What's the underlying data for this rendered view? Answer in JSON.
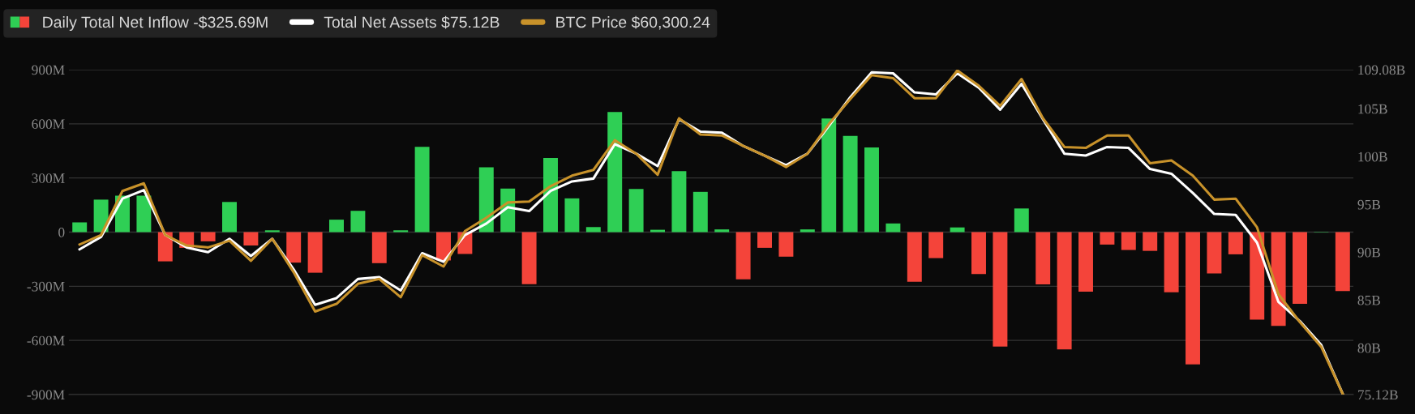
{
  "chart_data": {
    "type": "bar",
    "categories": [
      null,
      null,
      null,
      null,
      null,
      null,
      null,
      null,
      null,
      null,
      null,
      null,
      null,
      null,
      null,
      null,
      null,
      null,
      null,
      null,
      null,
      null,
      null,
      null,
      null,
      null,
      null,
      null,
      null,
      null,
      null,
      null,
      null,
      null,
      null,
      null,
      null,
      null,
      null,
      null,
      null,
      null,
      null,
      null,
      null,
      null,
      null,
      null,
      null,
      null,
      null,
      null,
      null,
      null,
      null,
      null,
      null,
      null,
      null,
      null
    ],
    "series": [
      {
        "name": "Daily Total Net Inflow -$325.69M",
        "values": [
          54,
          180,
          202,
          202,
          -162,
          -87,
          -51,
          167,
          -74,
          10,
          -169,
          -225,
          69,
          118,
          -172,
          10,
          472,
          -157,
          -121,
          359,
          241,
          -288,
          411,
          187,
          28,
          665,
          239,
          13,
          338,
          223,
          15,
          -262,
          -87,
          -136,
          15,
          629,
          533,
          469,
          48,
          -275,
          -144,
          26,
          -232,
          -634,
          131,
          -290,
          -650,
          -330,
          -69,
          -99,
          -104,
          -333,
          -733,
          -229,
          -123,
          -485,
          -520,
          -397,
          2,
          -326
        ],
        "colors": [
          "#2fcf55",
          "#2fcf55",
          "#2fcf55",
          "#2fcf55",
          "#f4443a",
          "#f4443a",
          "#f4443a",
          "#2fcf55",
          "#f4443a",
          "#2fcf55",
          "#f4443a",
          "#f4443a",
          "#2fcf55",
          "#2fcf55",
          "#f4443a",
          "#2fcf55",
          "#2fcf55",
          "#f4443a",
          "#f4443a",
          "#2fcf55",
          "#2fcf55",
          "#f4443a",
          "#2fcf55",
          "#2fcf55",
          "#2fcf55",
          "#2fcf55",
          "#2fcf55",
          "#2fcf55",
          "#2fcf55",
          "#2fcf55",
          "#2fcf55",
          "#f4443a",
          "#f4443a",
          "#f4443a",
          "#2fcf55",
          "#2fcf55",
          "#2fcf55",
          "#2fcf55",
          "#2fcf55",
          "#f4443a",
          "#f4443a",
          "#2fcf55",
          "#f4443a",
          "#f4443a",
          "#2fcf55",
          "#f4443a",
          "#f4443a",
          "#f4443a",
          "#f4443a",
          "#f4443a",
          "#f4443a",
          "#f4443a",
          "#f4443a",
          "#f4443a",
          "#f4443a",
          "#f4443a",
          "#f4443a",
          "#f4443a",
          "#2fcf55",
          "#f4443a"
        ]
      },
      {
        "name": "Total Net Assets $75.12B",
        "type": "line",
        "axis": "y2",
        "color": "#ffffff",
        "values": [
          90.3,
          91.6,
          95.6,
          96.5,
          91.8,
          90.5,
          90.0,
          91.4,
          89.6,
          91.4,
          88.2,
          84.5,
          85.2,
          87.2,
          87.4,
          86.0,
          89.9,
          89.0,
          91.8,
          93.0,
          94.7,
          94.3,
          96.4,
          97.4,
          97.7,
          101.3,
          100.3,
          99.0,
          103.9,
          102.6,
          102.5,
          101.1,
          100.1,
          99.1,
          100.3,
          103.2,
          106.2,
          108.8,
          108.7,
          106.7,
          106.5,
          108.7,
          107.2,
          104.9,
          107.6,
          103.9,
          100.3,
          100.1,
          101.0,
          100.9,
          98.7,
          98.2,
          96.2,
          94.0,
          93.9,
          91.0,
          84.8,
          82.8,
          80.3,
          75.2
        ]
      },
      {
        "name": "BTC Price $60,300.24",
        "type": "line",
        "axis": "y2",
        "color": "#c8922a",
        "values": [
          90.8,
          91.8,
          96.4,
          97.2,
          91.8,
          90.7,
          90.5,
          91.2,
          89.1,
          91.4,
          87.9,
          83.8,
          84.6,
          86.7,
          87.2,
          85.3,
          89.7,
          88.5,
          92.2,
          93.6,
          95.2,
          95.3,
          96.9,
          98.0,
          98.6,
          101.7,
          100.3,
          98.1,
          104.0,
          102.3,
          102.2,
          101.1,
          100.1,
          98.9,
          100.3,
          103.4,
          106.0,
          108.5,
          108.2,
          106.1,
          106.1,
          109.0,
          107.4,
          105.3,
          108.1,
          104.0,
          101.0,
          100.9,
          102.2,
          102.2,
          99.3,
          99.6,
          98.0,
          95.5,
          95.6,
          92.6,
          85.6,
          82.7,
          80.1,
          75.2
        ]
      }
    ],
    "ylim": [
      -900,
      900
    ],
    "yticks": [
      {
        "value": -900,
        "label": "-900M"
      },
      {
        "value": -600,
        "label": "-600M"
      },
      {
        "value": -300,
        "label": "-300M"
      },
      0,
      {
        "value": 300,
        "label": "300M"
      },
      {
        "value": 600,
        "label": "600M"
      },
      {
        "value": 900,
        "label": "900M"
      }
    ],
    "y2lim": [
      75.12,
      109.08
    ],
    "y2ticks": [
      {
        "value": 75.12,
        "label": "75.12B"
      },
      {
        "value": 80,
        "label": "80B"
      },
      {
        "value": 85,
        "label": "85B"
      },
      {
        "value": 90,
        "label": "90B"
      },
      {
        "value": 95,
        "label": "95B"
      },
      {
        "value": 100,
        "label": "100B"
      },
      {
        "value": 105,
        "label": "105B"
      },
      {
        "value": 109.08,
        "label": "109.08B"
      }
    ],
    "grid": "y",
    "legend": "top left"
  }
}
